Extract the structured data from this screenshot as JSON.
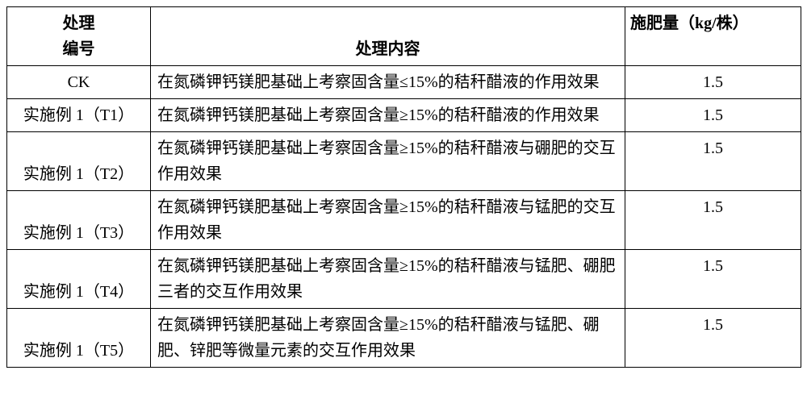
{
  "table": {
    "headers": {
      "id_line1": "处理",
      "id_line2": "编号",
      "content": "处理内容",
      "amount": "施肥量（kg/株）"
    },
    "rows": [
      {
        "id": "CK",
        "content": "在氮磷钾钙镁肥基础上考察固含量≤15%的秸秆醋液的作用效果",
        "amount": "1.5"
      },
      {
        "id": "实施例 1（T1）",
        "content": "在氮磷钾钙镁肥基础上考察固含量≥15%的秸秆醋液的作用效果",
        "amount": "1.5"
      },
      {
        "id": "实施例 1（T2）",
        "content": "在氮磷钾钙镁肥基础上考察固含量≥15%的秸秆醋液与硼肥的交互作用效果",
        "amount": "1.5"
      },
      {
        "id": "实施例 1（T3）",
        "content": "在氮磷钾钙镁肥基础上考察固含量≥15%的秸秆醋液与锰肥的交互作用效果",
        "amount": "1.5"
      },
      {
        "id": "实施例 1（T4）",
        "content": "在氮磷钾钙镁肥基础上考察固含量≥15%的秸秆醋液与锰肥、硼肥三者的交互作用效果",
        "amount": "1.5"
      },
      {
        "id": "实施例 1（T5）",
        "content": "在氮磷钾钙镁肥基础上考察固含量≥15%的秸秆醋液与锰肥、硼肥、锌肥等微量元素的交互作用效果",
        "amount": "1.5"
      }
    ],
    "columns": {
      "id_width": 178,
      "content_width": 588,
      "amount_width": 218
    },
    "styling": {
      "border_color": "#000000",
      "background_color": "#ffffff",
      "font_family": "SimSun",
      "font_size": 20,
      "header_font_weight_id": "bold"
    }
  }
}
